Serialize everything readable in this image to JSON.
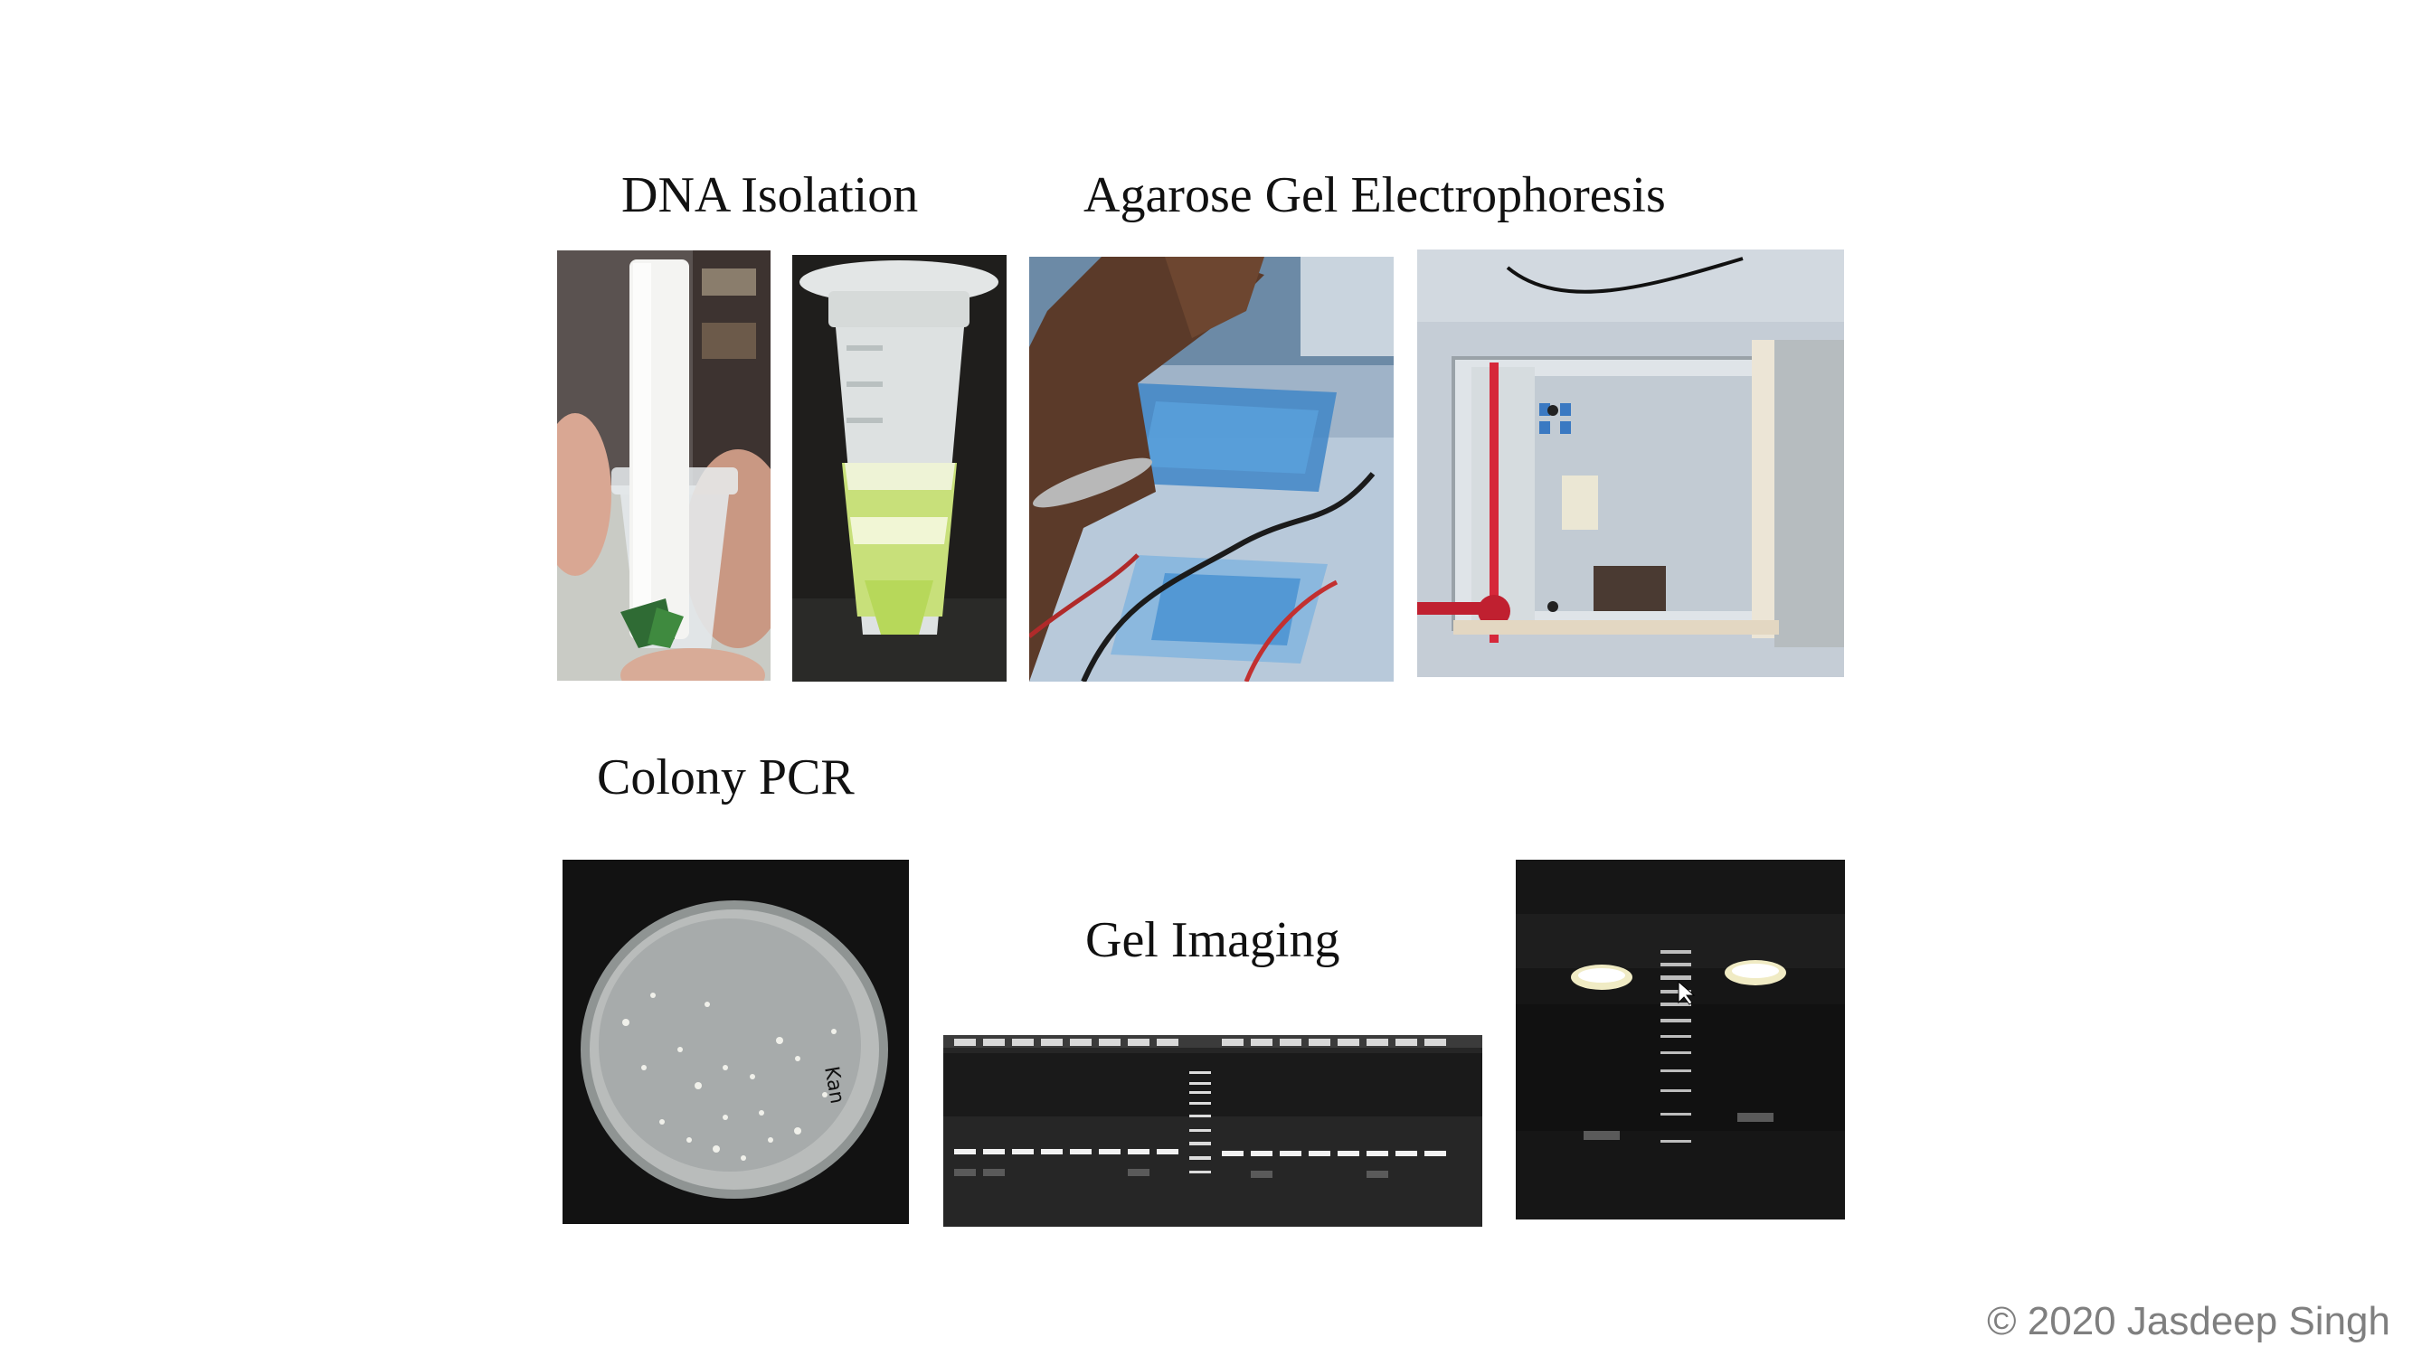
{
  "sections": {
    "dna_isolation": "DNA Isolation",
    "agarose_gel": "Agarose Gel Electrophoresis",
    "colony_pcr": "Colony PCR",
    "gel_imaging": "Gel Imaging"
  },
  "footer": {
    "copyright": "© 2020 Jasdeep Singh"
  },
  "photos": [
    {
      "icon": "tube-pestle-photo"
    },
    {
      "icon": "green-lysate-tube-photo"
    },
    {
      "icon": "gel-casting-hands-photo"
    },
    {
      "icon": "electrophoresis-tank-photo"
    },
    {
      "icon": "petri-dish-colonies-photo"
    },
    {
      "icon": "gel-bands-image-photo"
    },
    {
      "icon": "gel-ladder-closeup-photo"
    }
  ],
  "plate_text": "Kan"
}
